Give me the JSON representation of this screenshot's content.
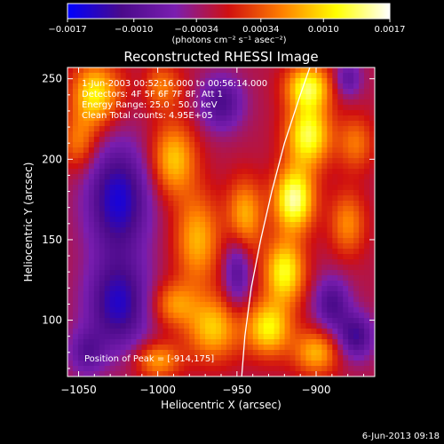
{
  "chart_data": {
    "type": "heatmap",
    "title": "Reconstructed RHESSI Image",
    "xlabel": "Heliocentric X (arcsec)",
    "ylabel": "Heliocentric Y (arcsec)",
    "xlim": [
      -1057,
      -863
    ],
    "ylim": [
      65,
      257
    ],
    "x_ticks": [
      {
        "value": -1050,
        "label": "−1050"
      },
      {
        "value": -1000,
        "label": "−1000"
      },
      {
        "value": -950,
        "label": "−950"
      },
      {
        "value": -900,
        "label": "−900"
      }
    ],
    "y_ticks": [
      {
        "value": 100,
        "label": "100"
      },
      {
        "value": 150,
        "label": "150"
      },
      {
        "value": 200,
        "label": "200"
      },
      {
        "value": 250,
        "label": "250"
      }
    ],
    "colorbar": {
      "range": [
        -0.0017,
        0.0017
      ],
      "ticks": [
        {
          "value": -0.0017,
          "label": "−0.0017"
        },
        {
          "value": -0.001,
          "label": "−0.0010"
        },
        {
          "value": -0.00034,
          "label": "−0.00034"
        },
        {
          "value": 0.00034,
          "label": "0.00034"
        },
        {
          "value": 0.001,
          "label": "0.0010"
        },
        {
          "value": 0.0017,
          "label": "0.0017"
        }
      ],
      "unit_label": "(photons cm⁻² s⁻¹ asec⁻²)",
      "colors": [
        "#0000ff",
        "#4a0a8a",
        "#7a1eb0",
        "#d01010",
        "#ff8000",
        "#ffff00",
        "#ffffff"
      ]
    },
    "annotations": [
      "1-Jun-2003 00:52:16.000 to 00:56:14.000",
      "Detectors: 4F 5F 6F 7F 8F, Att 1",
      "Energy Range: 25.0 - 50.0 keV",
      "Clean    Total counts: 4.95E+05"
    ],
    "peak_label": "Position of Peak = [-914,175]",
    "peak": {
      "x": -914,
      "y": 175
    },
    "limb_curve": [
      [
        -947,
        65
      ],
      [
        -945,
        90
      ],
      [
        -941,
        120
      ],
      [
        -935,
        150
      ],
      [
        -928,
        180
      ],
      [
        -920,
        210
      ],
      [
        -910,
        240
      ],
      [
        -904,
        257
      ]
    ],
    "emission_blobs": [
      {
        "x": -1040,
        "y": 240,
        "amp": 0.0013,
        "sx": 10,
        "sy": 14
      },
      {
        "x": -1005,
        "y": 245,
        "amp": 0.0012,
        "sx": 12,
        "sy": 10
      },
      {
        "x": -990,
        "y": 200,
        "amp": 0.0011,
        "sx": 10,
        "sy": 16
      },
      {
        "x": -975,
        "y": 150,
        "amp": 0.001,
        "sx": 10,
        "sy": 20
      },
      {
        "x": -965,
        "y": 95,
        "amp": 0.0011,
        "sx": 12,
        "sy": 14
      },
      {
        "x": -990,
        "y": 110,
        "amp": 0.0008,
        "sx": 10,
        "sy": 10
      },
      {
        "x": -1000,
        "y": 75,
        "amp": 0.0009,
        "sx": 10,
        "sy": 8
      },
      {
        "x": -914,
        "y": 175,
        "amp": 0.0017,
        "sx": 9,
        "sy": 14
      },
      {
        "x": -905,
        "y": 215,
        "amp": 0.0015,
        "sx": 10,
        "sy": 14
      },
      {
        "x": -905,
        "y": 245,
        "amp": 0.0014,
        "sx": 10,
        "sy": 10
      },
      {
        "x": -920,
        "y": 130,
        "amp": 0.0014,
        "sx": 9,
        "sy": 14
      },
      {
        "x": -930,
        "y": 95,
        "amp": 0.0013,
        "sx": 10,
        "sy": 12
      },
      {
        "x": -900,
        "y": 80,
        "amp": 0.001,
        "sx": 10,
        "sy": 10
      },
      {
        "x": -945,
        "y": 165,
        "amp": 0.001,
        "sx": 8,
        "sy": 16
      },
      {
        "x": -880,
        "y": 160,
        "amp": 0.0008,
        "sx": 8,
        "sy": 14
      },
      {
        "x": -875,
        "y": 210,
        "amp": 0.0007,
        "sx": 8,
        "sy": 12
      },
      {
        "x": -1050,
        "y": 210,
        "amp": 0.0007,
        "sx": 8,
        "sy": 12
      },
      {
        "x": -1025,
        "y": 175,
        "amp": -0.0013,
        "sx": 14,
        "sy": 24
      },
      {
        "x": -1025,
        "y": 110,
        "amp": -0.0012,
        "sx": 14,
        "sy": 20
      },
      {
        "x": -1010,
        "y": 245,
        "amp": -0.0009,
        "sx": 8,
        "sy": 10
      },
      {
        "x": -960,
        "y": 235,
        "amp": -0.0009,
        "sx": 10,
        "sy": 12
      },
      {
        "x": -950,
        "y": 130,
        "amp": -0.0008,
        "sx": 6,
        "sy": 16
      },
      {
        "x": -890,
        "y": 110,
        "amp": -0.0009,
        "sx": 8,
        "sy": 12
      },
      {
        "x": -875,
        "y": 90,
        "amp": -0.001,
        "sx": 8,
        "sy": 10
      },
      {
        "x": -880,
        "y": 250,
        "amp": -0.0007,
        "sx": 6,
        "sy": 8
      },
      {
        "x": -1045,
        "y": 80,
        "amp": -0.0007,
        "sx": 8,
        "sy": 10
      }
    ]
  },
  "footer": {
    "timestamp": "6-Jun-2013 09:18"
  }
}
